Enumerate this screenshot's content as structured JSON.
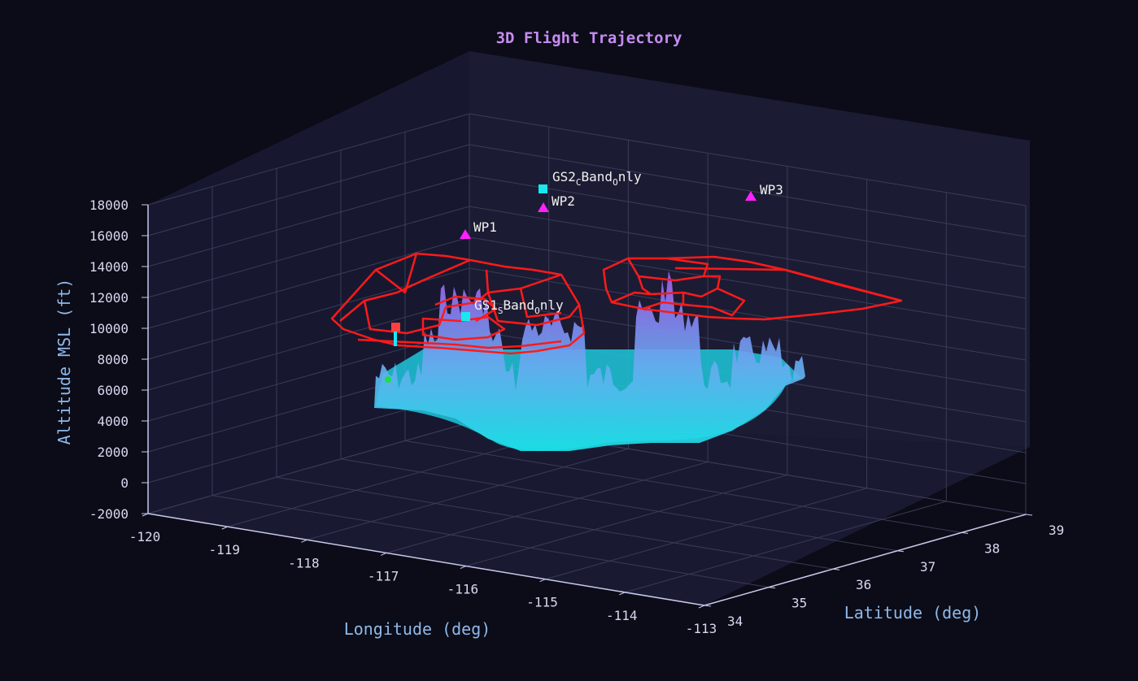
{
  "chart_data": {
    "type": "3d-surface-trajectory",
    "title": "3D Flight Trajectory",
    "xlabel": "Longitude (deg)",
    "ylabel": "Latitude (deg)",
    "zlabel": "Altitude MSL (ft)",
    "xlim": [
      -120,
      -113
    ],
    "ylim": [
      34,
      39
    ],
    "zlim": [
      -2000,
      18000
    ],
    "x_ticks": [
      "-120",
      "-119",
      "-118",
      "-117",
      "-116",
      "-115",
      "-114",
      "-113"
    ],
    "y_ticks": [
      "34",
      "35",
      "36",
      "37",
      "38",
      "39"
    ],
    "z_ticks": [
      "-2000",
      "0",
      "2000",
      "4000",
      "6000",
      "8000",
      "10000",
      "12000",
      "14000",
      "16000",
      "18000"
    ],
    "markers": [
      {
        "name": "WP1",
        "kind": "waypoint",
        "color": "#ff22ff",
        "label_main": "WP1",
        "label_sub": ""
      },
      {
        "name": "WP2",
        "kind": "waypoint",
        "color": "#ff22ff",
        "label_main": "WP2",
        "label_sub": ""
      },
      {
        "name": "WP3",
        "kind": "waypoint",
        "color": "#ff22ff",
        "label_main": "WP3",
        "label_sub": ""
      },
      {
        "name": "GS2",
        "kind": "ground-station",
        "color": "#19e8f0",
        "label_parts": [
          "GS2",
          "C",
          "Band",
          "O",
          "nly"
        ]
      },
      {
        "name": "GS1",
        "kind": "ground-station",
        "color": "#19e8f0",
        "label_parts": [
          "GS1",
          "S",
          "Band",
          "O",
          "nly"
        ]
      }
    ],
    "colors": {
      "background": "#0b0c17",
      "pane": "#1b1c33",
      "grid": "#3a3b58",
      "airspace": "#ff1a1a",
      "terrain_low": "#19e0e6",
      "terrain_mid": "#64aef0",
      "terrain_high": "#a35cf0",
      "start_marker": "#ff4040",
      "end_marker": "#22dd44"
    }
  }
}
